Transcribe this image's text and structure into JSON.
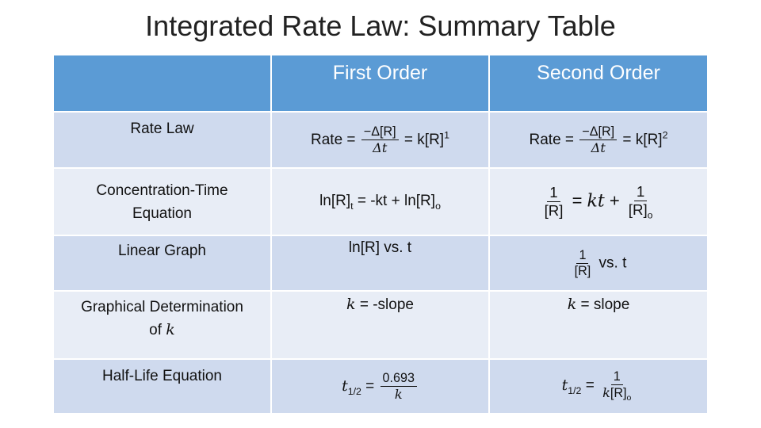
{
  "title": "Integrated Rate Law: Summary Table",
  "table": {
    "header": [
      "First Order",
      "Second Order"
    ],
    "rows": [
      {
        "label": [
          {
            "text": "Rate Law"
          }
        ],
        "cells": [
          [
            {
              "text": "Rate = "
            },
            {
              "num": [
                {
                  "text": "−Δ[R]"
                }
              ],
              "den": [
                {
                  "italic": "Δt"
                }
              ]
            },
            {
              "text": " = k[R]"
            },
            {
              "sup": "1"
            }
          ],
          [
            {
              "text": "Rate = "
            },
            {
              "num": [
                {
                  "text": "−Δ[R]"
                }
              ],
              "den": [
                {
                  "italic": "Δt"
                }
              ]
            },
            {
              "text": " = k[R]"
            },
            {
              "sup": "2"
            }
          ]
        ]
      },
      {
        "label": [
          {
            "text": "Concentration-Time Equation"
          }
        ],
        "cells": [
          [
            {
              "text": "ln[R]"
            },
            {
              "sub": "t"
            },
            {
              "text": " = -kt + ln[R]"
            },
            {
              "sub": "o"
            }
          ],
          [
            {
              "num": [
                {
                  "text": "1"
                }
              ],
              "den": [
                {
                  "text": "[R]"
                }
              ]
            },
            {
              "text": " = "
            },
            {
              "italic": "kt"
            },
            {
              "text": " + "
            },
            {
              "num": [
                {
                  "text": "1"
                }
              ],
              "den": [
                {
                  "text": "[R]"
                },
                {
                  "sub": "o"
                }
              ]
            }
          ]
        ]
      },
      {
        "label": [
          {
            "text": "Linear Graph"
          }
        ],
        "cells": [
          [
            {
              "text": "ln[R] vs. t"
            }
          ],
          [
            {
              "num": [
                {
                  "text": "1"
                }
              ],
              "den": [
                {
                  "text": "[R]"
                }
              ]
            },
            {
              "text": " vs. t"
            }
          ]
        ]
      },
      {
        "label": [
          {
            "text": "Graphical Determination of "
          },
          {
            "italic": "k"
          }
        ],
        "cells": [
          [
            {
              "italic": "k"
            },
            {
              "text": " = -slope"
            }
          ],
          [
            {
              "italic": "k"
            },
            {
              "text": " = slope"
            }
          ]
        ]
      },
      {
        "label": [
          {
            "text": "Half-Life Equation"
          }
        ],
        "cells": [
          [
            {
              "italic": "t"
            },
            {
              "sub": "1/2"
            },
            {
              "text": " = "
            },
            {
              "num": [
                {
                  "text": "0.693"
                }
              ],
              "den": [
                {
                  "italic": "k"
                }
              ]
            }
          ],
          [
            {
              "italic": "t"
            },
            {
              "sub": "1/2"
            },
            {
              "text": " = "
            },
            {
              "num": [
                {
                  "text": "1"
                }
              ],
              "den": [
                {
                  "italic": "k"
                },
                {
                  "text": "[R]"
                },
                {
                  "sub": "o"
                }
              ]
            }
          ]
        ]
      }
    ]
  }
}
